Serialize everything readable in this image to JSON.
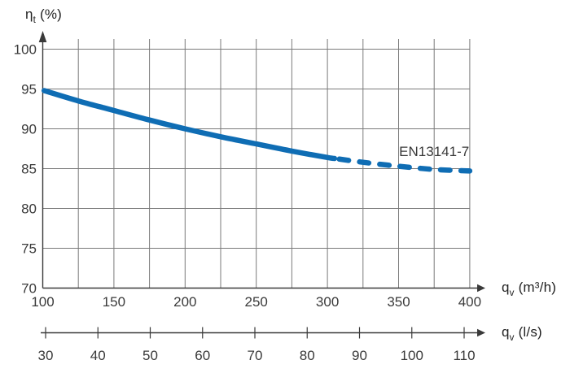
{
  "chart_data": {
    "type": "line",
    "title": "",
    "grid": true,
    "colors": {
      "curve": "#0f6db4",
      "gridline": "#7a7a7a",
      "axis": "#3a3a3a",
      "text": "#3a3a3a"
    },
    "series": [
      {
        "name": "EN13141-7",
        "x": [
          100,
          125,
          150,
          175,
          200,
          225,
          250,
          275,
          300,
          325,
          350,
          375,
          400
        ],
        "y": [
          94.8,
          93.5,
          92.3,
          91.1,
          90.0,
          89.0,
          88.1,
          87.2,
          86.4,
          85.8,
          85.3,
          84.9,
          84.7
        ],
        "line_style": {
          "solid_range": [
            100,
            305
          ],
          "dashed_range": [
            305,
            400
          ]
        }
      }
    ],
    "x_axis": {
      "title": {
        "base": "q",
        "sub": "v",
        "rest": " (m³/h)"
      },
      "range": [
        100,
        400
      ],
      "ticks": [
        100,
        150,
        200,
        250,
        300,
        350,
        400
      ],
      "gridline_step": 25
    },
    "y_axis": {
      "title": {
        "base": "η",
        "sub": "t",
        "rest": " (%)"
      },
      "range": [
        70,
        100
      ],
      "ticks": [
        100,
        95,
        90,
        85,
        80,
        75,
        70
      ],
      "gridline_step": 5
    },
    "x_axis_secondary": {
      "title": {
        "base": "q",
        "sub": "v",
        "rest": " (l/s)"
      },
      "range": [
        30,
        110
      ],
      "ticks": [
        30,
        40,
        50,
        60,
        70,
        80,
        90,
        100,
        110
      ]
    },
    "annotation": {
      "text": "EN13141-7",
      "x": 375,
      "y": 87.1
    }
  }
}
